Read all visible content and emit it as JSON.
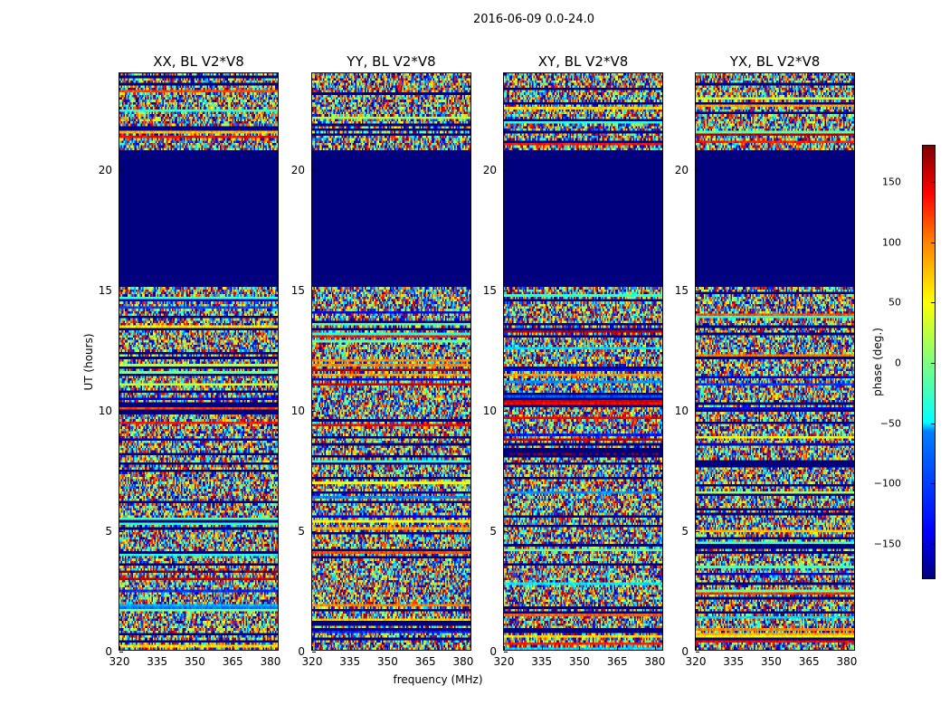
{
  "figure": {
    "suptitle": "2016-06-09 0.0-24.0"
  },
  "chart_data": {
    "type": "heatmap",
    "xlabel": "frequency (MHz)",
    "ylabel": "UT (hours)",
    "xlim": [
      320,
      383.6
    ],
    "ylim": [
      0,
      24
    ],
    "xticks": [
      "320",
      "335",
      "350",
      "365",
      "380"
    ],
    "yticks": [
      "0",
      "5",
      "10",
      "15",
      "20"
    ],
    "masked_hours": [
      15.1,
      20.8
    ],
    "panels": [
      {
        "title": "XX, BL V2*V8",
        "seed": 11
      },
      {
        "title": "YY, BL V2*V8",
        "seed": 23
      },
      {
        "title": "XY, BL V2*V8",
        "seed": 37
      },
      {
        "title": "YX, BL V2*V8",
        "seed": 51
      }
    ],
    "colorbar": {
      "label": "phase (deg.)",
      "range": [
        -180,
        180
      ],
      "ticks": [
        "150",
        "100",
        "50",
        "0",
        "−50",
        "−100",
        "−150"
      ],
      "tick_values": [
        150,
        100,
        50,
        0,
        -50,
        -100,
        -150
      ],
      "colormap": "jet"
    }
  }
}
